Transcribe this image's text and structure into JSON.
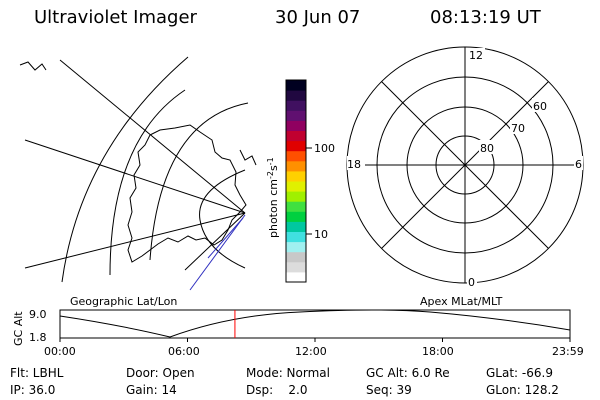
{
  "header": {
    "title": "Ultraviolet Imager",
    "date": "30 Jun 07",
    "time": "08:13:19 UT"
  },
  "colorbar": {
    "ticks": [
      "100",
      "10"
    ],
    "unit_label": "photon cm",
    "unit_sup1": "-2",
    "unit_mid": "s",
    "unit_sup2": "-1",
    "colors": [
      "#ffffff",
      "#dcdcdc",
      "#c8c8c8",
      "#a0f0f0",
      "#40e0e0",
      "#00c8a0",
      "#00d040",
      "#40e040",
      "#a0f000",
      "#e0f000",
      "#ffd000",
      "#ff9000",
      "#ff5000",
      "#e00000",
      "#c00030",
      "#900060",
      "#601070",
      "#401060",
      "#200840",
      "#000020"
    ]
  },
  "polar": {
    "lat_labels": [
      "80",
      "70",
      "60"
    ],
    "mlt_labels": [
      "12",
      "18",
      "6",
      "0"
    ]
  },
  "timeline": {
    "left_label": "Geographic Lat/Lon",
    "right_label": "Apex MLat/MLT",
    "ylabel": "GC Alt",
    "y_ticks": [
      "9.0",
      "1.8"
    ],
    "x_ticks": [
      "00:00",
      "06:00",
      "12:00",
      "18:00",
      "23:59"
    ],
    "current_time_fraction": 0.343,
    "marker_color": "#ff0000"
  },
  "info": {
    "row1": [
      "Flt: LBHL",
      "Door: Open",
      "Mode: Normal",
      "GC Alt: 6.0 Re",
      "GLat: -66.9"
    ],
    "row2": [
      "IP: 36.0",
      "Gain: 14",
      "Dsp:    2.0",
      "Seq: 39",
      "GLon: 128.2"
    ]
  }
}
